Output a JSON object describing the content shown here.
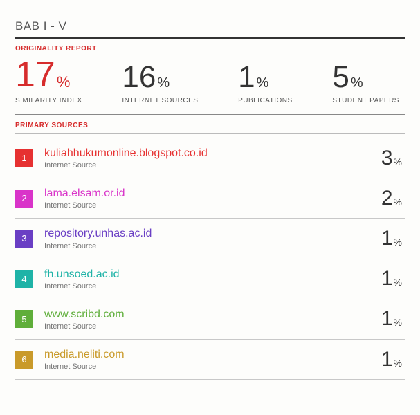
{
  "title": "BAB I - V",
  "labels": {
    "originality": "ORIGINALITY REPORT",
    "primary": "PRIMARY SOURCES"
  },
  "metrics": [
    {
      "value": "17",
      "unit": "%",
      "label": "SIMILARITY INDEX",
      "highlight": true
    },
    {
      "value": "16",
      "unit": "%",
      "label": "INTERNET SOURCES",
      "highlight": false
    },
    {
      "value": "1",
      "unit": "%",
      "label": "PUBLICATIONS",
      "highlight": false
    },
    {
      "value": "5",
      "unit": "%",
      "label": "STUDENT PAPERS",
      "highlight": false
    }
  ],
  "sources": [
    {
      "rank": "1",
      "badge_color": "#e63131",
      "url": "kuliahhukumonline.blogspot.co.id",
      "url_color": "#e63131",
      "type": "Internet Source",
      "percent": "3"
    },
    {
      "rank": "2",
      "badge_color": "#d934c9",
      "url": "lama.elsam.or.id",
      "url_color": "#d934c9",
      "type": "Internet Source",
      "percent": "2"
    },
    {
      "rank": "3",
      "badge_color": "#6a3fc4",
      "url": "repository.unhas.ac.id",
      "url_color": "#6a3fc4",
      "type": "Internet Source",
      "percent": "1"
    },
    {
      "rank": "4",
      "badge_color": "#1fb3a7",
      "url": "fh.unsoed.ac.id",
      "url_color": "#1fb3a7",
      "type": "Internet Source",
      "percent": "1"
    },
    {
      "rank": "5",
      "badge_color": "#5fae3a",
      "url": "www.scribd.com",
      "url_color": "#5fae3a",
      "type": "Internet Source",
      "percent": "1"
    },
    {
      "rank": "6",
      "badge_color": "#c99a2a",
      "url": "media.neliti.com",
      "url_color": "#c99a2a",
      "type": "Internet Source",
      "percent": "1"
    }
  ],
  "percent_sign": "%"
}
